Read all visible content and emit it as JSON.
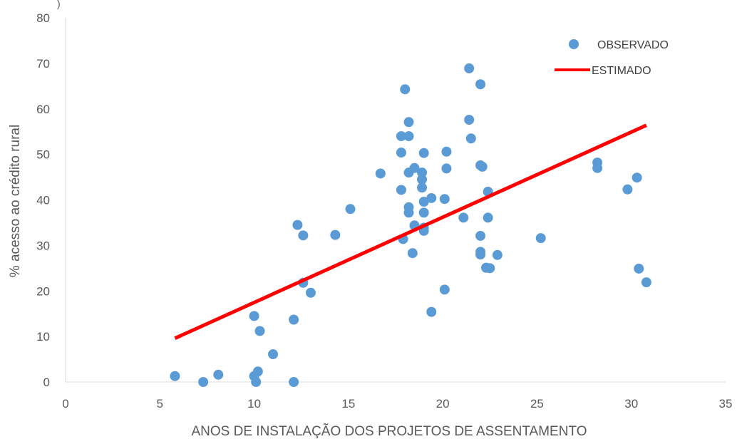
{
  "chart_data": {
    "type": "scatter",
    "title": "",
    "xlabel": "ANOS DE INSTALAÇÃO DOS PROJETOS DE ASSENTAMENTO",
    "ylabel": "% acesso ao crédito rural",
    "xlim": [
      0,
      35
    ],
    "ylim": [
      0,
      80
    ],
    "x_ticks": [
      "0",
      "5",
      "10",
      "15",
      "20",
      "25",
      "30",
      "35"
    ],
    "y_ticks": [
      "0",
      "10",
      "20",
      "30",
      "40",
      "50",
      "60",
      "70",
      "80"
    ],
    "grid": false,
    "legend_position": "top-right",
    "top_fragment": ")",
    "series": [
      {
        "name": "OBSERVADO",
        "kind": "points",
        "color": "#5B9BD5",
        "points": [
          [
            5.8,
            1.3
          ],
          [
            7.3,
            0.0
          ],
          [
            8.1,
            1.6
          ],
          [
            10.0,
            1.3
          ],
          [
            10.0,
            14.5
          ],
          [
            10.1,
            0.0
          ],
          [
            10.2,
            2.3
          ],
          [
            10.3,
            11.2
          ],
          [
            11.0,
            6.1
          ],
          [
            12.1,
            13.7
          ],
          [
            12.1,
            0.0
          ],
          [
            12.3,
            34.5
          ],
          [
            12.6,
            32.2
          ],
          [
            12.6,
            21.8
          ],
          [
            13.0,
            19.6
          ],
          [
            14.3,
            32.3
          ],
          [
            15.1,
            38.0
          ],
          [
            16.7,
            45.8
          ],
          [
            17.8,
            50.4
          ],
          [
            17.8,
            54.0
          ],
          [
            17.8,
            42.2
          ],
          [
            17.9,
            31.4
          ],
          [
            18.0,
            64.3
          ],
          [
            18.2,
            57.1
          ],
          [
            18.2,
            54.0
          ],
          [
            18.2,
            46.0
          ],
          [
            18.2,
            38.4
          ],
          [
            18.2,
            37.2
          ],
          [
            18.4,
            28.3
          ],
          [
            18.5,
            34.4
          ],
          [
            18.5,
            47.0
          ],
          [
            18.9,
            46.0
          ],
          [
            18.9,
            44.5
          ],
          [
            18.9,
            42.7
          ],
          [
            19.0,
            50.3
          ],
          [
            19.0,
            39.6
          ],
          [
            19.0,
            37.2
          ],
          [
            19.0,
            33.9
          ],
          [
            19.0,
            33.2
          ],
          [
            19.4,
            40.4
          ],
          [
            19.4,
            15.4
          ],
          [
            20.1,
            40.2
          ],
          [
            20.1,
            20.3
          ],
          [
            20.2,
            50.6
          ],
          [
            20.2,
            46.9
          ],
          [
            21.1,
            36.1
          ],
          [
            21.4,
            68.9
          ],
          [
            21.4,
            57.6
          ],
          [
            21.5,
            53.5
          ],
          [
            22.0,
            65.4
          ],
          [
            22.0,
            47.6
          ],
          [
            22.0,
            32.1
          ],
          [
            22.0,
            28.6
          ],
          [
            22.0,
            28.0
          ],
          [
            22.1,
            47.3
          ],
          [
            22.3,
            25.1
          ],
          [
            22.4,
            41.8
          ],
          [
            22.4,
            36.1
          ],
          [
            22.5,
            25.0
          ],
          [
            22.9,
            27.9
          ],
          [
            25.2,
            31.6
          ],
          [
            28.2,
            48.2
          ],
          [
            28.2,
            47.0
          ],
          [
            29.8,
            42.3
          ],
          [
            30.3,
            44.9
          ],
          [
            30.4,
            24.9
          ],
          [
            30.8,
            21.9
          ]
        ]
      },
      {
        "name": "ESTIMADO",
        "kind": "line",
        "color": "#FF0000",
        "x": [
          5.8,
          30.8
        ],
        "y": [
          9.6,
          56.4
        ]
      }
    ]
  }
}
